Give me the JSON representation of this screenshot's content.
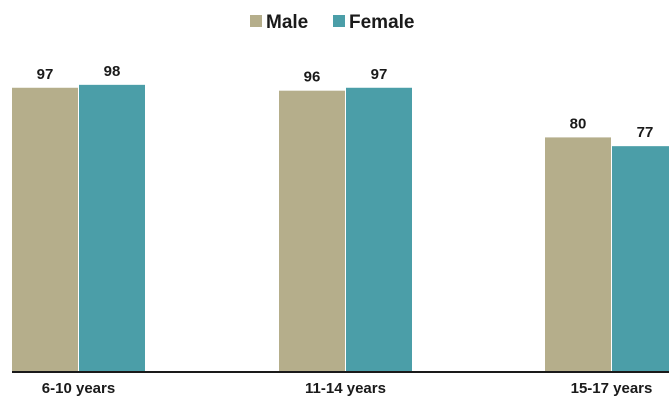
{
  "chart_data": {
    "type": "bar",
    "categories": [
      "6-10 years",
      "11-14 years",
      "15-17 years"
    ],
    "series": [
      {
        "name": "Male",
        "values": [
          97,
          96,
          80
        ],
        "color": "#b5ae8b"
      },
      {
        "name": "Female",
        "values": [
          98,
          97,
          77
        ],
        "color": "#4b9ea8"
      }
    ],
    "ylim": [
      0,
      100
    ],
    "grid": false,
    "legend_position": "top-center",
    "data_labels": true
  }
}
